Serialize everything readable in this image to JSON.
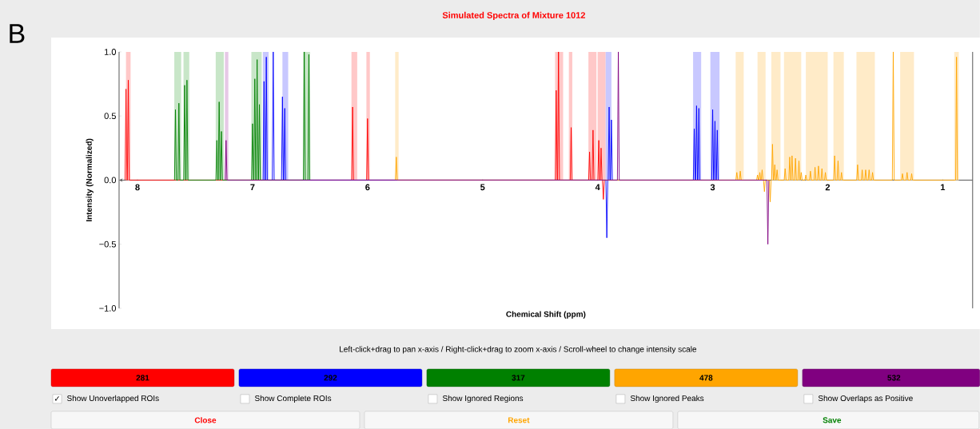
{
  "chart_data": {
    "type": "line",
    "title": "Simulated Spectra of Mixture 1012",
    "xlabel": "Chemical Shift (ppm)",
    "ylabel": "Intensity (Normalized)",
    "xlim": [
      8.16,
      0.74
    ],
    "ylim": [
      -1,
      1
    ],
    "xticks": [
      8,
      7,
      6,
      5,
      4,
      3,
      2,
      1
    ],
    "yticks": [
      {
        "value": -1,
        "label": "−1.0"
      },
      {
        "value": -0.5,
        "label": "−0.5"
      },
      {
        "value": 0,
        "label": "0.0"
      },
      {
        "value": 0.5,
        "label": "0.5"
      },
      {
        "value": 1,
        "label": "1.0"
      }
    ],
    "legend": "bottom",
    "series": [
      {
        "name": "281",
        "color": "#ff0000",
        "x": [
          8.108,
          8.1,
          8.092,
          8.088,
          8.08,
          8.072,
          6.138,
          6.13,
          6.122,
          6.008,
          6.0,
          5.992,
          4.368,
          4.36,
          4.352,
          4.348,
          4.34,
          4.332,
          4.238,
          4.23,
          4.222,
          4.078,
          4.07,
          4.062,
          4.048,
          4.04,
          4.032,
          3.998,
          3.99,
          3.982,
          3.978,
          3.97,
          3.962,
          3.958,
          3.95,
          3.942
        ],
        "values": [
          0,
          0.71,
          0,
          0,
          0.78,
          0,
          0,
          0.57,
          0,
          0,
          0.48,
          0,
          0,
          0.7,
          0,
          0,
          1.0,
          0,
          0,
          0.41,
          0,
          0,
          0.22,
          0,
          0,
          0.39,
          0,
          0,
          0.31,
          0,
          0,
          0.25,
          0,
          0,
          -0.15,
          0
        ]
      },
      {
        "name": "292",
        "color": "#0000ff",
        "x": [
          6.908,
          6.9,
          6.892,
          6.888,
          6.88,
          6.872,
          6.828,
          6.82,
          6.812,
          6.748,
          6.74,
          6.732,
          6.728,
          6.72,
          6.712,
          3.928,
          3.92,
          3.912,
          3.908,
          3.9,
          3.892,
          3.888,
          3.88,
          3.872,
          3.168,
          3.16,
          3.152,
          3.148,
          3.14,
          3.132,
          3.128,
          3.12,
          3.112,
          3.008,
          3.0,
          2.992,
          2.988,
          2.98,
          2.972,
          2.968,
          2.96,
          2.952
        ],
        "values": [
          0,
          0.77,
          0,
          0,
          0.96,
          0,
          0,
          1.0,
          0,
          0,
          0.65,
          0,
          0,
          0.56,
          0,
          0,
          -0.45,
          0,
          0,
          0.57,
          0,
          0,
          0.47,
          0,
          0,
          0.4,
          0,
          0,
          0.58,
          0,
          0,
          0.56,
          0,
          0,
          0.55,
          0,
          0,
          0.46,
          0,
          0,
          0.39,
          0
        ]
      },
      {
        "name": "317",
        "color": "#008000",
        "x": [
          7.678,
          7.67,
          7.662,
          7.648,
          7.64,
          7.632,
          7.598,
          7.59,
          7.582,
          7.578,
          7.57,
          7.562,
          7.318,
          7.31,
          7.302,
          7.298,
          7.29,
          7.282,
          7.278,
          7.27,
          7.262,
          7.008,
          7.0,
          6.992,
          6.988,
          6.98,
          6.972,
          6.968,
          6.96,
          6.952,
          6.948,
          6.94,
          6.932,
          6.558,
          6.55,
          6.542,
          6.518,
          6.51,
          6.502
        ],
        "values": [
          0,
          0.55,
          0,
          0,
          0.6,
          0,
          0,
          0.74,
          0,
          0,
          0.78,
          0,
          0,
          0.31,
          0,
          0,
          0.61,
          0,
          0,
          0.38,
          0,
          0,
          0.44,
          0,
          0,
          0.79,
          0,
          0,
          0.94,
          0,
          0,
          0.59,
          0,
          0,
          1.0,
          0,
          0,
          0.98,
          0
        ]
      },
      {
        "name": "478",
        "color": "#ffa500",
        "x": [
          5.758,
          5.75,
          5.742,
          2.798,
          2.79,
          2.782,
          2.768,
          2.76,
          2.752,
          2.618,
          2.61,
          2.602,
          2.598,
          2.59,
          2.582,
          2.578,
          2.57,
          2.562,
          2.558,
          2.55,
          2.542,
          2.508,
          2.5,
          2.492,
          2.488,
          2.48,
          2.472,
          2.468,
          2.46,
          2.452,
          2.448,
          2.44,
          2.432,
          2.378,
          2.37,
          2.362,
          2.338,
          2.33,
          2.322,
          2.318,
          2.31,
          2.302,
          2.288,
          2.28,
          2.272,
          2.258,
          2.25,
          2.242,
          2.238,
          2.23,
          2.222,
          2.198,
          2.19,
          2.182,
          2.158,
          2.15,
          2.142,
          2.118,
          2.11,
          2.102,
          2.088,
          2.08,
          2.072,
          2.058,
          2.05,
          2.042,
          2.028,
          2.02,
          2.012,
          1.948,
          1.94,
          1.932,
          1.918,
          1.91,
          1.902,
          1.888,
          1.88,
          1.872,
          1.748,
          1.74,
          1.732,
          1.708,
          1.7,
          1.692,
          1.678,
          1.67,
          1.662,
          1.648,
          1.64,
          1.632,
          1.618,
          1.61,
          1.602,
          1.438,
          1.43,
          1.422,
          1.358,
          1.35,
          1.342,
          1.318,
          1.31,
          1.302,
          1.278,
          1.27,
          1.262,
          0.888,
          0.88,
          0.872
        ],
        "values": [
          0,
          0.18,
          0,
          0,
          0.06,
          0,
          0,
          0.07,
          0,
          0,
          0.04,
          0,
          0,
          0.06,
          0,
          0,
          0.08,
          0,
          0,
          -0.09,
          0,
          0,
          -0.17,
          0,
          0,
          0.28,
          0,
          0,
          0.12,
          0,
          0,
          0.08,
          0,
          0,
          0.09,
          0,
          0,
          0.18,
          0,
          0,
          0.19,
          0,
          0,
          0.17,
          0,
          0,
          0.15,
          0,
          0,
          0.06,
          0,
          0,
          0.04,
          0,
          0,
          0.07,
          0,
          0,
          0.1,
          0,
          0,
          0.11,
          0,
          0,
          0.09,
          0,
          0,
          0.06,
          0,
          0,
          0.19,
          0,
          0,
          0.15,
          0,
          0,
          0.06,
          0,
          0,
          0.12,
          0,
          0,
          0.08,
          0,
          0,
          0.08,
          0,
          0,
          0.08,
          0,
          0,
          0.06,
          0,
          0,
          1.0,
          0,
          0,
          0.05,
          0,
          0,
          0.06,
          0,
          0,
          0.05,
          0,
          0,
          0.96,
          0
        ]
      },
      {
        "name": "532",
        "color": "#800080",
        "x": [
          7.238,
          7.23,
          7.222,
          3.828,
          3.82,
          3.812,
          2.528,
          2.52,
          2.512
        ],
        "values": [
          0,
          0.31,
          0,
          0,
          1.0,
          0,
          0,
          -0.5,
          0
        ]
      }
    ],
    "bands": [
      {
        "axis": "x",
        "from": 8.1,
        "to": 8.06,
        "color": "#ffc8c8"
      },
      {
        "axis": "x",
        "from": 6.14,
        "to": 6.09,
        "color": "#ffc8c8"
      },
      {
        "axis": "x",
        "from": 6.01,
        "to": 5.98,
        "color": "#ffc8c8"
      },
      {
        "axis": "x",
        "from": 4.37,
        "to": 4.3,
        "color": "#ffc8c8"
      },
      {
        "axis": "x",
        "from": 4.25,
        "to": 4.22,
        "color": "#ffc8c8"
      },
      {
        "axis": "x",
        "from": 4.08,
        "to": 4.01,
        "color": "#ffc8c8"
      },
      {
        "axis": "x",
        "from": 4.0,
        "to": 3.93,
        "color": "#ffc8c8"
      },
      {
        "axis": "x",
        "from": 6.91,
        "to": 6.86,
        "color": "#c8c8ff"
      },
      {
        "axis": "x",
        "from": 6.74,
        "to": 6.69,
        "color": "#c8c8ff"
      },
      {
        "axis": "x",
        "from": 3.93,
        "to": 3.88,
        "color": "#c8c8ff"
      },
      {
        "axis": "x",
        "from": 3.17,
        "to": 3.1,
        "color": "#c8c8ff"
      },
      {
        "axis": "x",
        "from": 3.02,
        "to": 2.94,
        "color": "#c8c8ff"
      },
      {
        "axis": "x",
        "from": 7.68,
        "to": 7.62,
        "color": "#c8e6c8"
      },
      {
        "axis": "x",
        "from": 7.6,
        "to": 7.55,
        "color": "#c8e6c8"
      },
      {
        "axis": "x",
        "from": 7.32,
        "to": 7.25,
        "color": "#c8e6c8"
      },
      {
        "axis": "x",
        "from": 7.01,
        "to": 6.92,
        "color": "#c8e6c8"
      },
      {
        "axis": "x",
        "from": 6.56,
        "to": 6.5,
        "color": "#c8e6c8"
      },
      {
        "axis": "x",
        "from": 7.24,
        "to": 7.21,
        "color": "#e6c8e6"
      },
      {
        "axis": "x",
        "from": 5.76,
        "to": 5.73,
        "color": "#ffebc8"
      },
      {
        "axis": "x",
        "from": 2.8,
        "to": 2.73,
        "color": "#ffebc8"
      },
      {
        "axis": "x",
        "from": 2.61,
        "to": 2.54,
        "color": "#ffebc8"
      },
      {
        "axis": "x",
        "from": 2.49,
        "to": 2.41,
        "color": "#ffebc8"
      },
      {
        "axis": "x",
        "from": 2.38,
        "to": 2.23,
        "color": "#ffebc8"
      },
      {
        "axis": "x",
        "from": 2.19,
        "to": 2.0,
        "color": "#ffebc8"
      },
      {
        "axis": "x",
        "from": 1.95,
        "to": 1.86,
        "color": "#ffebc8"
      },
      {
        "axis": "x",
        "from": 1.75,
        "to": 1.59,
        "color": "#ffebc8"
      },
      {
        "axis": "x",
        "from": 1.37,
        "to": 1.25,
        "color": "#ffebc8"
      },
      {
        "axis": "x",
        "from": 0.9,
        "to": 0.86,
        "color": "#ffebc8"
      }
    ],
    "annotations": [
      "B",
      "Left-click+drag to pan x-axis / Right-click+drag to zoom x-axis / Scroll-wheel to change intensity scale",
      "Show Unoverlapped ROIs",
      "Show Complete ROIs",
      "Show Ignored Regions",
      "Show Ignored Peaks",
      "Show Overlaps as Positive",
      "✓",
      "Close",
      "Reset",
      "Save"
    ]
  }
}
